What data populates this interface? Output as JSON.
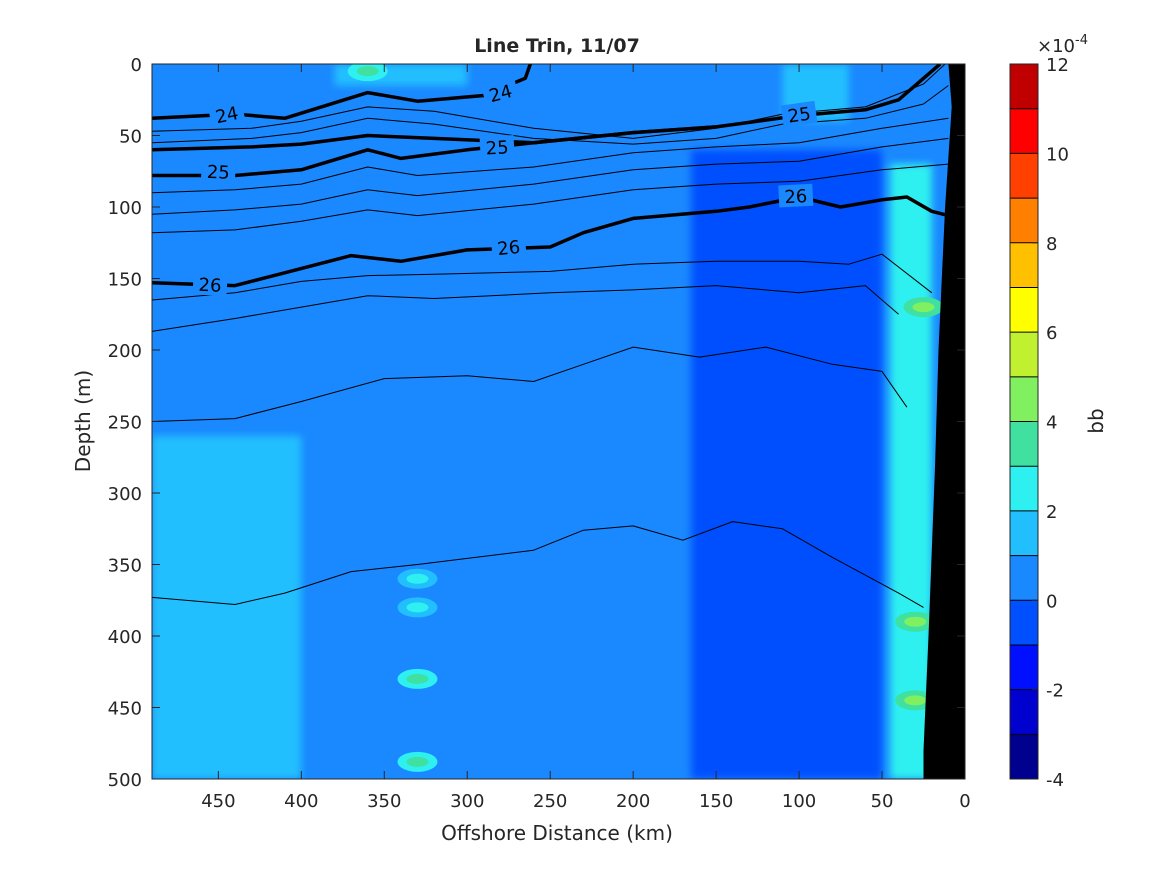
{
  "chart_data": {
    "type": "heatmap",
    "title": "Line Trin, 11/07",
    "xlabel": "Offshore Distance (km)",
    "ylabel": "Depth (m)",
    "xlim": [
      490,
      0
    ],
    "ylim": [
      0,
      500
    ],
    "x_ticks": [
      450,
      400,
      350,
      300,
      250,
      200,
      150,
      100,
      50,
      0
    ],
    "y_ticks": [
      0,
      50,
      100,
      150,
      200,
      250,
      300,
      350,
      400,
      450,
      500
    ],
    "colorbar": {
      "label": "bb",
      "exponent_label": "×10",
      "exponent": "-4",
      "range": [
        -4,
        12
      ],
      "ticks": [
        12,
        10,
        8,
        6,
        4,
        2,
        0,
        -2,
        -4
      ],
      "levels": [
        -4,
        -3,
        -2,
        -1,
        0,
        1,
        2,
        3,
        4,
        5,
        6,
        7,
        8,
        9,
        10,
        11,
        12
      ],
      "colors": [
        "#00008f",
        "#0000cf",
        "#0010ff",
        "#0050ff",
        "#1a88ff",
        "#22bfff",
        "#2ff0f0",
        "#3fe0a0",
        "#80f060",
        "#c0f030",
        "#ffff00",
        "#ffc000",
        "#ff8000",
        "#ff4000",
        "#ff0000",
        "#c00000"
      ]
    },
    "background_value": 0.5,
    "zones": [
      {
        "name": "offshore-band",
        "x": [
          490,
          400
        ],
        "depth": [
          260,
          500
        ],
        "value": 1.5
      },
      {
        "name": "low-band",
        "x": [
          165,
          50
        ],
        "depth": [
          60,
          500
        ],
        "value": -0.5
      },
      {
        "name": "nearshore-band",
        "x": [
          45,
          20
        ],
        "depth": [
          70,
          500
        ],
        "value": 2.5
      },
      {
        "name": "nearshore-top",
        "x": [
          110,
          70
        ],
        "depth": [
          0,
          40
        ],
        "value": 1.5
      },
      {
        "name": "surface-patch",
        "x": [
          380,
          300
        ],
        "depth": [
          0,
          15
        ],
        "value": 1.5
      }
    ],
    "spots": [
      {
        "x": 330,
        "depth": 360,
        "value": 2.5
      },
      {
        "x": 330,
        "depth": 380,
        "value": 2.5
      },
      {
        "x": 330,
        "depth": 430,
        "value": 3.5
      },
      {
        "x": 330,
        "depth": 488,
        "value": 3
      },
      {
        "x": 25,
        "depth": 170,
        "value": 4
      },
      {
        "x": 30,
        "depth": 390,
        "value": 4
      },
      {
        "x": 30,
        "depth": 445,
        "value": 4
      },
      {
        "x": 360,
        "depth": 5,
        "value": 3
      }
    ],
    "contours": [
      {
        "level": 24,
        "bold": true,
        "points": [
          [
            490,
            38
          ],
          [
            440,
            35
          ],
          [
            410,
            38
          ],
          [
            360,
            20
          ],
          [
            330,
            26
          ],
          [
            290,
            22
          ],
          [
            265,
            10
          ],
          [
            262,
            0
          ]
        ]
      },
      {
        "level": 24.25,
        "bold": false,
        "points": [
          [
            490,
            47
          ],
          [
            430,
            45
          ],
          [
            400,
            40
          ],
          [
            360,
            30
          ],
          [
            320,
            33
          ],
          [
            260,
            45
          ],
          [
            200,
            52
          ],
          [
            150,
            45
          ],
          [
            110,
            35
          ],
          [
            60,
            30
          ],
          [
            25,
            14
          ],
          [
            12,
            0
          ]
        ]
      },
      {
        "level": 24.5,
        "bold": false,
        "points": [
          [
            490,
            55
          ],
          [
            430,
            52
          ],
          [
            400,
            48
          ],
          [
            360,
            38
          ],
          [
            320,
            42
          ],
          [
            260,
            52
          ],
          [
            200,
            56
          ],
          [
            150,
            52
          ],
          [
            110,
            42
          ],
          [
            60,
            38
          ],
          [
            25,
            28
          ],
          [
            10,
            15
          ]
        ]
      },
      {
        "level": 25,
        "bold": true,
        "points": [
          [
            490,
            60
          ],
          [
            430,
            58
          ],
          [
            400,
            56
          ],
          [
            360,
            50
          ],
          [
            320,
            52
          ],
          [
            260,
            55
          ],
          [
            200,
            48
          ],
          [
            150,
            44
          ],
          [
            100,
            36
          ],
          [
            60,
            32
          ],
          [
            40,
            25
          ],
          [
            15,
            0
          ]
        ]
      },
      {
        "level": 25,
        "bold": true,
        "points": [
          [
            490,
            78
          ],
          [
            440,
            78
          ],
          [
            400,
            74
          ],
          [
            360,
            60
          ],
          [
            340,
            66
          ],
          [
            300,
            60
          ],
          [
            260,
            55
          ],
          [
            200,
            48
          ],
          [
            150,
            44
          ]
        ]
      },
      {
        "level": 25.25,
        "bold": false,
        "points": [
          [
            490,
            90
          ],
          [
            440,
            88
          ],
          [
            400,
            84
          ],
          [
            360,
            72
          ],
          [
            330,
            78
          ],
          [
            260,
            72
          ],
          [
            200,
            62
          ],
          [
            150,
            58
          ],
          [
            100,
            55
          ],
          [
            50,
            45
          ],
          [
            10,
            38
          ]
        ]
      },
      {
        "level": 25.5,
        "bold": false,
        "points": [
          [
            490,
            105
          ],
          [
            440,
            102
          ],
          [
            400,
            98
          ],
          [
            360,
            88
          ],
          [
            330,
            92
          ],
          [
            260,
            84
          ],
          [
            200,
            74
          ],
          [
            150,
            70
          ],
          [
            100,
            68
          ],
          [
            50,
            58
          ],
          [
            10,
            52
          ]
        ]
      },
      {
        "level": 25.75,
        "bold": false,
        "points": [
          [
            490,
            118
          ],
          [
            440,
            116
          ],
          [
            400,
            110
          ],
          [
            360,
            102
          ],
          [
            330,
            106
          ],
          [
            260,
            98
          ],
          [
            200,
            88
          ],
          [
            150,
            84
          ],
          [
            100,
            82
          ],
          [
            50,
            74
          ],
          [
            10,
            70
          ]
        ]
      },
      {
        "level": 26,
        "bold": true,
        "points": [
          [
            490,
            153
          ],
          [
            440,
            155
          ],
          [
            410,
            146
          ],
          [
            370,
            134
          ],
          [
            340,
            138
          ],
          [
            300,
            130
          ],
          [
            250,
            128
          ],
          [
            230,
            118
          ],
          [
            200,
            108
          ],
          [
            150,
            103
          ],
          [
            130,
            100
          ],
          [
            100,
            93
          ],
          [
            75,
            100
          ],
          [
            50,
            95
          ],
          [
            35,
            93
          ],
          [
            20,
            103
          ],
          [
            10,
            106
          ]
        ]
      },
      {
        "level": 26.25,
        "bold": false,
        "points": [
          [
            490,
            165
          ],
          [
            440,
            160
          ],
          [
            400,
            152
          ],
          [
            360,
            148
          ],
          [
            320,
            147
          ],
          [
            250,
            145
          ],
          [
            200,
            140
          ],
          [
            150,
            138
          ],
          [
            100,
            138
          ],
          [
            70,
            140
          ],
          [
            50,
            133
          ],
          [
            20,
            160
          ]
        ]
      },
      {
        "level": 26.5,
        "bold": false,
        "points": [
          [
            490,
            187
          ],
          [
            440,
            178
          ],
          [
            400,
            170
          ],
          [
            360,
            162
          ],
          [
            320,
            164
          ],
          [
            250,
            160
          ],
          [
            200,
            158
          ],
          [
            150,
            155
          ],
          [
            100,
            160
          ],
          [
            60,
            155
          ],
          [
            40,
            175
          ]
        ]
      },
      {
        "level": 26.75,
        "bold": false,
        "points": [
          [
            490,
            250
          ],
          [
            440,
            248
          ],
          [
            400,
            236
          ],
          [
            350,
            220
          ],
          [
            300,
            218
          ],
          [
            260,
            222
          ],
          [
            230,
            210
          ],
          [
            200,
            198
          ],
          [
            160,
            205
          ],
          [
            120,
            198
          ],
          [
            80,
            210
          ],
          [
            50,
            215
          ],
          [
            35,
            240
          ]
        ]
      },
      {
        "level": 27,
        "bold": false,
        "points": [
          [
            490,
            373
          ],
          [
            440,
            378
          ],
          [
            410,
            370
          ],
          [
            370,
            355
          ],
          [
            330,
            350
          ],
          [
            260,
            340
          ],
          [
            230,
            326
          ],
          [
            200,
            323
          ],
          [
            170,
            333
          ],
          [
            140,
            320
          ],
          [
            110,
            325
          ],
          [
            80,
            345
          ],
          [
            40,
            370
          ],
          [
            25,
            380
          ]
        ]
      }
    ],
    "contour_labels": [
      {
        "text": "24",
        "x": 445,
        "depth": 35,
        "angle": -12
      },
      {
        "text": "24",
        "x": 280,
        "depth": 20,
        "angle": -15
      },
      {
        "text": "25",
        "x": 100,
        "depth": 35,
        "angle": -8
      },
      {
        "text": "25",
        "x": 282,
        "depth": 58,
        "angle": -3
      },
      {
        "text": "25",
        "x": 450,
        "depth": 75,
        "angle": 3
      },
      {
        "text": "26",
        "x": 102,
        "depth": 92,
        "angle": -3
      },
      {
        "text": "26",
        "x": 275,
        "depth": 128,
        "angle": -6
      },
      {
        "text": "26",
        "x": 455,
        "depth": 154,
        "angle": 3
      }
    ],
    "shelf": {
      "points": [
        [
          10,
          0
        ],
        [
          0,
          0
        ],
        [
          0,
          500
        ],
        [
          25,
          500
        ],
        [
          25,
          480
        ],
        [
          22,
          400
        ],
        [
          18,
          280
        ],
        [
          16,
          200
        ],
        [
          12,
          100
        ],
        [
          8,
          30
        ]
      ]
    }
  }
}
